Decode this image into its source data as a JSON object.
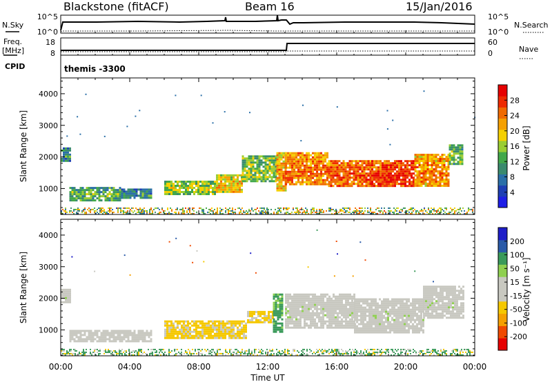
{
  "header": {
    "station": "Blackstone (fitACF)",
    "beam": "Beam 16",
    "date": "15/Jan/2016"
  },
  "panels": {
    "nsky": {
      "left_label": "N.Sky",
      "left_ticks": [
        "10^5",
        "10^0"
      ],
      "right_label": "N.Search",
      "right_ticks": [
        "10^5",
        "10^0"
      ]
    },
    "freq": {
      "left_label_1": "Freq.",
      "left_label_2": "[MHz]",
      "left_ticks": [
        "18",
        "8"
      ],
      "right_label": "Nave",
      "right_ticks": [
        "60",
        "0"
      ]
    },
    "cpid": {
      "label": "CPID",
      "value": "themis -3300"
    }
  },
  "colors": {
    "power": [
      "#1e1ee6",
      "#1e3fb4",
      "#2a6fa8",
      "#3a8a6e",
      "#42a84a",
      "#9acd32",
      "#f5d000",
      "#f5a000",
      "#f06a00",
      "#ee2a00",
      "#e60000"
    ],
    "velocity": [
      "#e60000",
      "#f04a00",
      "#f5a000",
      "#f5c800",
      "#c8c8c0",
      "#c8c8c0",
      "#8fd050",
      "#3a9a5a",
      "#2a5aa8",
      "#1e1ec8"
    ]
  },
  "chart_data": [
    {
      "type": "heatmap",
      "name": "power",
      "ylabel": "Slant Range [km]",
      "xlim": [
        "00:00",
        "24:00"
      ],
      "ylim": [
        180,
        4500
      ],
      "yticks": [
        "1000",
        "2000",
        "3000",
        "4000"
      ],
      "colorbar": {
        "label": "Power [dB]",
        "ticks": [
          "4",
          "8",
          "12",
          "16",
          "20",
          "24",
          "28"
        ],
        "range": [
          0,
          30
        ]
      },
      "bands": [
        {
          "t0": 0.0,
          "t1": 0.5,
          "r0": 1900,
          "r1": 2300,
          "value": 6
        },
        {
          "t0": 0.5,
          "t1": 3.5,
          "r0": 650,
          "r1": 1050,
          "value": 9
        },
        {
          "t0": 3.5,
          "t1": 5.2,
          "r0": 700,
          "r1": 1000,
          "value": 6
        },
        {
          "t0": 6.0,
          "t1": 9.0,
          "r0": 850,
          "r1": 1250,
          "value": 12
        },
        {
          "t0": 9.0,
          "t1": 10.5,
          "r0": 900,
          "r1": 1450,
          "value": 16
        },
        {
          "t0": 10.5,
          "t1": 12.5,
          "r0": 1200,
          "r1": 2050,
          "value": 11
        },
        {
          "t0": 12.5,
          "t1": 13.0,
          "r0": 950,
          "r1": 2150,
          "value": 18
        },
        {
          "t0": 13.0,
          "t1": 15.5,
          "r0": 1150,
          "r1": 2150,
          "value": 20
        },
        {
          "t0": 15.5,
          "t1": 18.0,
          "r0": 1100,
          "r1": 1900,
          "value": 22
        },
        {
          "t0": 18.0,
          "t1": 20.5,
          "r0": 1050,
          "r1": 1900,
          "value": 24
        },
        {
          "t0": 20.5,
          "t1": 22.5,
          "r0": 1100,
          "r1": 2100,
          "value": 19
        },
        {
          "t0": 22.5,
          "t1": 23.3,
          "r0": 1800,
          "r1": 2400,
          "value": 10
        }
      ]
    },
    {
      "type": "heatmap",
      "name": "velocity",
      "xlabel": "Time UT",
      "ylabel": "Slant Range [km]",
      "xlim": [
        "00:00",
        "24:00"
      ],
      "ylim": [
        180,
        4500
      ],
      "xticks": [
        "00:00",
        "04:00",
        "08:00",
        "12:00",
        "16:00",
        "20:00",
        "00:00"
      ],
      "yticks": [
        "1000",
        "2000",
        "3000",
        "4000"
      ],
      "colorbar": {
        "label": "Velocity [m s⁻¹]",
        "ticks": [
          "200",
          "100",
          "50",
          "15",
          "-15",
          "-50",
          "-100",
          "-200"
        ]
      },
      "bands": [
        {
          "t0": 0.0,
          "t1": 0.5,
          "r0": 1900,
          "r1": 2300,
          "value": 0
        },
        {
          "t0": 0.5,
          "t1": 5.2,
          "r0": 650,
          "r1": 1000,
          "value": -10
        },
        {
          "t0": 6.0,
          "t1": 10.8,
          "r0": 750,
          "r1": 1300,
          "value": -40
        },
        {
          "t0": 10.8,
          "t1": 12.3,
          "r0": 1250,
          "r1": 1600,
          "value": -40
        },
        {
          "t0": 12.3,
          "t1": 12.9,
          "r0": 950,
          "r1": 2150,
          "value": 30
        },
        {
          "t0": 13.0,
          "t1": 17.0,
          "r0": 1050,
          "r1": 2150,
          "value": 0
        },
        {
          "t0": 17.0,
          "t1": 21.0,
          "r0": 950,
          "r1": 2000,
          "value": 0
        },
        {
          "t0": 21.0,
          "t1": 23.3,
          "r0": 1400,
          "r1": 2400,
          "value": 0
        }
      ]
    }
  ]
}
